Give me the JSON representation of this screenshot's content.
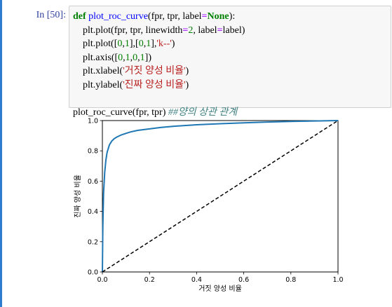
{
  "cell": {
    "prompt": "In [50]:",
    "code": {
      "line1": {
        "def": "def",
        "name": "plot_roc_curve",
        "args_a": "(fpr, tpr, label",
        "eq": "=",
        "none": "None",
        "args_b": "):"
      },
      "line2": {
        "a": "plt.plot(fpr, tpr, linewidth",
        "eq": "=",
        "num": "2",
        "b": ", label",
        "eq2": "=",
        "c": "label)"
      },
      "line3": {
        "a": "plt.plot([",
        "n1": "0",
        "b": ",",
        "n2": "1",
        "c": "],[",
        "n3": "0",
        "d": ",",
        "n4": "1",
        "e": "],",
        "s": "'k--'",
        "f": ")"
      },
      "line4": {
        "a": "plt.axis([",
        "n1": "0",
        "b": ",",
        "n2": "1",
        "c": ",",
        "n3": "0",
        "d": ",",
        "n4": "1",
        "e": "])"
      },
      "line5": {
        "a": "plt.xlabel(",
        "s": "'거짓 양성 비율'",
        "b": ")"
      },
      "line6": {
        "a": "plt.ylabel(",
        "s": "'진짜 양성 비율'",
        "b": ")"
      },
      "line8": {
        "a": "plot_roc_curve(fpr, tpr) ",
        "comment": "##양의 상관 관계"
      }
    }
  },
  "chart_data": {
    "type": "line",
    "xlabel": "거짓 양성 비율",
    "ylabel": "진짜 양성 비율",
    "xlim": [
      0.0,
      1.0
    ],
    "ylim": [
      0.0,
      1.0
    ],
    "xticks": [
      "0.0",
      "0.2",
      "0.4",
      "0.6",
      "0.8",
      "1.0"
    ],
    "yticks": [
      "0.0",
      "0.2",
      "0.4",
      "0.6",
      "0.8",
      "1.0"
    ],
    "grid": false,
    "series": [
      {
        "color": "#1f77b4",
        "style": "solid",
        "x": [
          0.0,
          0.002,
          0.005,
          0.01,
          0.015,
          0.02,
          0.03,
          0.04,
          0.05,
          0.06,
          0.08,
          0.1,
          0.12,
          0.15,
          0.2,
          0.25,
          0.3,
          0.4,
          0.5,
          0.6,
          0.7,
          0.8,
          0.9,
          1.0
        ],
        "y": [
          0.0,
          0.3,
          0.52,
          0.66,
          0.74,
          0.79,
          0.84,
          0.865,
          0.88,
          0.89,
          0.905,
          0.915,
          0.925,
          0.935,
          0.945,
          0.955,
          0.962,
          0.972,
          0.979,
          0.985,
          0.99,
          0.994,
          0.997,
          1.0
        ]
      },
      {
        "color": "#000000",
        "style": "dashed",
        "x": [
          0,
          1
        ],
        "y": [
          0,
          1
        ]
      }
    ]
  }
}
